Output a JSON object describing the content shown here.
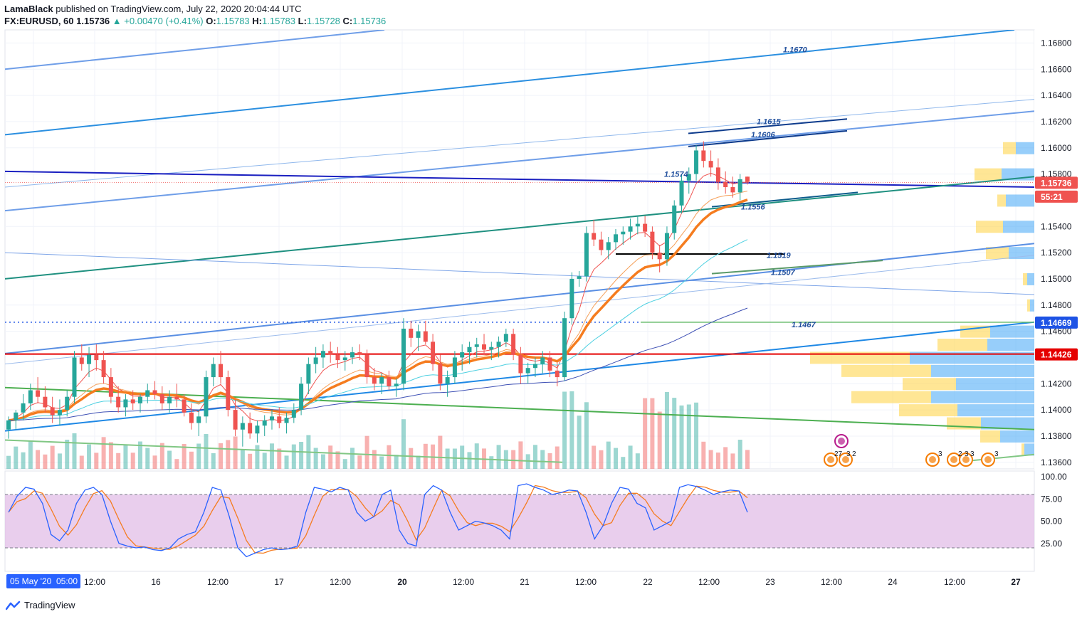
{
  "header": {
    "publisher": "LamaBlack",
    "published_text": "published on TradingView.com, July 22, 2020 20:04:44 UTC",
    "symbol": "FX:EURUSD, 60",
    "last": "1.15736",
    "change": "+0.00470 (+0.41%)",
    "open_label": "O:",
    "open": "1.15783",
    "high_label": "H:",
    "high": "1.15783",
    "low_label": "L:",
    "low": "1.15728",
    "close_label": "C:",
    "close": "1.15736"
  },
  "colors": {
    "bull": "#26a69a",
    "bear": "#ef5350",
    "ema_orange": "#f57c1f",
    "price_badge": "#ef5350",
    "level_blue": "#1e53e5",
    "support_red": "#e50000",
    "stoch_fill": "#e1bee7"
  },
  "price_axis": {
    "ticks": [
      "1.16800",
      "1.16600",
      "1.16400",
      "1.16200",
      "1.16000",
      "1.15800",
      "1.15400",
      "1.15200",
      "1.15000",
      "1.14800",
      "1.14600",
      "1.14200",
      "1.14000",
      "1.13800",
      "1.13600"
    ],
    "badges": [
      {
        "text": "1.15736",
        "color": "#ef5350"
      },
      {
        "text": "55:21",
        "color": "#ef5350"
      },
      {
        "text": "1.14669",
        "color": "#1e53e5"
      },
      {
        "text": "1.14426",
        "color": "#e50000"
      }
    ]
  },
  "stoch_axis": {
    "ticks": [
      "100.00",
      "75.00",
      "50.00",
      "25.00"
    ]
  },
  "time_axis": {
    "first_label": "05 May '20",
    "first_time": "05:00",
    "ticks": [
      "12:00",
      "16",
      "12:00",
      "17",
      "12:00",
      "20",
      "12:00",
      "21",
      "12:00",
      "22",
      "12:00",
      "23",
      "12:00",
      "24",
      "12:00",
      "27"
    ]
  },
  "annotations": [
    "1.1670",
    "1.1615",
    "1.1606",
    "1.1574",
    "1.1556",
    "1.1519",
    "1.1507",
    "1.1467"
  ],
  "event_badges": [
    "27",
    "3",
    "2",
    "3",
    "2",
    "3",
    "3",
    "3"
  ],
  "brand": "TradingView",
  "chart_data": {
    "type": "candlestick",
    "symbol": "FX:EURUSD",
    "interval": "60",
    "ylim": [
      1.1355,
      1.169
    ],
    "level_lines": [
      1.14669,
      1.14426,
      1.1519
    ],
    "candles_ohlc": [
      [
        1.1385,
        1.1395,
        1.1378,
        1.1392
      ],
      [
        1.1392,
        1.14,
        1.1385,
        1.1398
      ],
      [
        1.1398,
        1.1412,
        1.1392,
        1.1405
      ],
      [
        1.1405,
        1.142,
        1.14,
        1.1415
      ],
      [
        1.1415,
        1.1425,
        1.1405,
        1.141
      ],
      [
        1.141,
        1.1418,
        1.1398,
        1.1402
      ],
      [
        1.1402,
        1.141,
        1.139,
        1.1396
      ],
      [
        1.1396,
        1.1408,
        1.1388,
        1.14
      ],
      [
        1.14,
        1.1415,
        1.1395,
        1.141
      ],
      [
        1.141,
        1.1445,
        1.1405,
        1.144
      ],
      [
        1.144,
        1.145,
        1.143,
        1.1435
      ],
      [
        1.1435,
        1.1448,
        1.1425,
        1.1442
      ],
      [
        1.1442,
        1.145,
        1.143,
        1.1438
      ],
      [
        1.1438,
        1.1445,
        1.142,
        1.1425
      ],
      [
        1.1425,
        1.1432,
        1.1405,
        1.141
      ],
      [
        1.141,
        1.1418,
        1.1398,
        1.1402
      ],
      [
        1.1402,
        1.1412,
        1.1395,
        1.1408
      ],
      [
        1.1408,
        1.1415,
        1.14,
        1.1405
      ],
      [
        1.1405,
        1.1412,
        1.1398,
        1.141
      ],
      [
        1.141,
        1.142,
        1.1405,
        1.1415
      ],
      [
        1.1415,
        1.1422,
        1.1408,
        1.1412
      ],
      [
        1.1412,
        1.1418,
        1.14,
        1.1405
      ],
      [
        1.1405,
        1.1415,
        1.1398,
        1.141
      ],
      [
        1.141,
        1.142,
        1.1402,
        1.1408
      ],
      [
        1.1408,
        1.1412,
        1.1395,
        1.1398
      ],
      [
        1.1398,
        1.1405,
        1.1385,
        1.139
      ],
      [
        1.139,
        1.14,
        1.138,
        1.1395
      ],
      [
        1.1395,
        1.143,
        1.139,
        1.1425
      ],
      [
        1.1425,
        1.144,
        1.1418,
        1.1435
      ],
      [
        1.1435,
        1.1445,
        1.142,
        1.1425
      ],
      [
        1.1425,
        1.143,
        1.1395,
        1.14
      ],
      [
        1.14,
        1.1408,
        1.138,
        1.1385
      ],
      [
        1.1385,
        1.1395,
        1.1372,
        1.139
      ],
      [
        1.139,
        1.1398,
        1.1378,
        1.1382
      ],
      [
        1.1382,
        1.1392,
        1.1375,
        1.1388
      ],
      [
        1.1388,
        1.1396,
        1.138,
        1.1392
      ],
      [
        1.1392,
        1.14,
        1.1385,
        1.1395
      ],
      [
        1.1395,
        1.1402,
        1.1386,
        1.139
      ],
      [
        1.139,
        1.1398,
        1.1382,
        1.1394
      ],
      [
        1.1394,
        1.1405,
        1.139,
        1.14
      ],
      [
        1.14,
        1.1425,
        1.1396,
        1.142
      ],
      [
        1.142,
        1.144,
        1.1412,
        1.1435
      ],
      [
        1.1435,
        1.1448,
        1.1428,
        1.144
      ],
      [
        1.144,
        1.145,
        1.1432,
        1.1445
      ],
      [
        1.1445,
        1.1452,
        1.1436,
        1.1442
      ],
      [
        1.1442,
        1.1448,
        1.1432,
        1.1438
      ],
      [
        1.1438,
        1.1445,
        1.143,
        1.144
      ],
      [
        1.144,
        1.1448,
        1.1435,
        1.1444
      ],
      [
        1.1444,
        1.145,
        1.1438,
        1.1442
      ],
      [
        1.1442,
        1.1446,
        1.142,
        1.1425
      ],
      [
        1.1425,
        1.1432,
        1.1415,
        1.142
      ],
      [
        1.142,
        1.1428,
        1.1412,
        1.1425
      ],
      [
        1.1425,
        1.143,
        1.1415,
        1.1418
      ],
      [
        1.1418,
        1.1424,
        1.141,
        1.142
      ],
      [
        1.142,
        1.147,
        1.1415,
        1.1462
      ],
      [
        1.1462,
        1.1468,
        1.1448,
        1.1455
      ],
      [
        1.1455,
        1.1465,
        1.1445,
        1.146
      ],
      [
        1.146,
        1.1468,
        1.145,
        1.1452
      ],
      [
        1.1452,
        1.1458,
        1.143,
        1.1435
      ],
      [
        1.1435,
        1.1442,
        1.1415,
        1.142
      ],
      [
        1.142,
        1.143,
        1.141,
        1.1425
      ],
      [
        1.1425,
        1.1445,
        1.142,
        1.144
      ],
      [
        1.144,
        1.145,
        1.143,
        1.1444
      ],
      [
        1.1444,
        1.1452,
        1.1435,
        1.1448
      ],
      [
        1.1448,
        1.1455,
        1.144,
        1.145
      ],
      [
        1.145,
        1.1458,
        1.1442,
        1.1446
      ],
      [
        1.1446,
        1.1452,
        1.1438,
        1.1448
      ],
      [
        1.1448,
        1.1456,
        1.144,
        1.1452
      ],
      [
        1.1452,
        1.1462,
        1.1448,
        1.1458
      ],
      [
        1.1458,
        1.1462,
        1.1438,
        1.1442
      ],
      [
        1.1442,
        1.1448,
        1.142,
        1.1428
      ],
      [
        1.1428,
        1.1436,
        1.142,
        1.1432
      ],
      [
        1.1432,
        1.144,
        1.1425,
        1.1435
      ],
      [
        1.1435,
        1.1445,
        1.1428,
        1.144
      ],
      [
        1.144,
        1.1445,
        1.1425,
        1.143
      ],
      [
        1.143,
        1.1436,
        1.1418,
        1.1425
      ],
      [
        1.1425,
        1.1475,
        1.1422,
        1.147
      ],
      [
        1.147,
        1.1505,
        1.1465,
        1.15
      ],
      [
        1.15,
        1.1506,
        1.1494,
        1.1502
      ],
      [
        1.1502,
        1.154,
        1.1498,
        1.1535
      ],
      [
        1.1535,
        1.1545,
        1.1525,
        1.153
      ],
      [
        1.153,
        1.1536,
        1.1518,
        1.1522
      ],
      [
        1.1522,
        1.1532,
        1.1515,
        1.1528
      ],
      [
        1.1528,
        1.1538,
        1.1522,
        1.1534
      ],
      [
        1.1534,
        1.154,
        1.1526,
        1.1536
      ],
      [
        1.1536,
        1.1546,
        1.153,
        1.154
      ],
      [
        1.154,
        1.1548,
        1.1534,
        1.1542
      ],
      [
        1.1542,
        1.1548,
        1.1532,
        1.1536
      ],
      [
        1.1536,
        1.154,
        1.1515,
        1.152
      ],
      [
        1.152,
        1.1526,
        1.1505,
        1.1515
      ],
      [
        1.1515,
        1.154,
        1.151,
        1.1535
      ],
      [
        1.1535,
        1.156,
        1.153,
        1.1556
      ],
      [
        1.1556,
        1.158,
        1.155,
        1.1575
      ],
      [
        1.1575,
        1.1585,
        1.1565,
        1.158
      ],
      [
        1.158,
        1.1602,
        1.1575,
        1.1598
      ],
      [
        1.1598,
        1.1605,
        1.1585,
        1.159
      ],
      [
        1.159,
        1.1598,
        1.1578,
        1.1585
      ],
      [
        1.1585,
        1.1592,
        1.1568,
        1.1574
      ],
      [
        1.1574,
        1.1582,
        1.1565,
        1.157
      ],
      [
        1.157,
        1.1578,
        1.1562,
        1.1566
      ],
      [
        1.1566,
        1.158,
        1.156,
        1.1576
      ],
      [
        1.1578,
        1.1578,
        1.1572,
        1.1574
      ]
    ]
  }
}
